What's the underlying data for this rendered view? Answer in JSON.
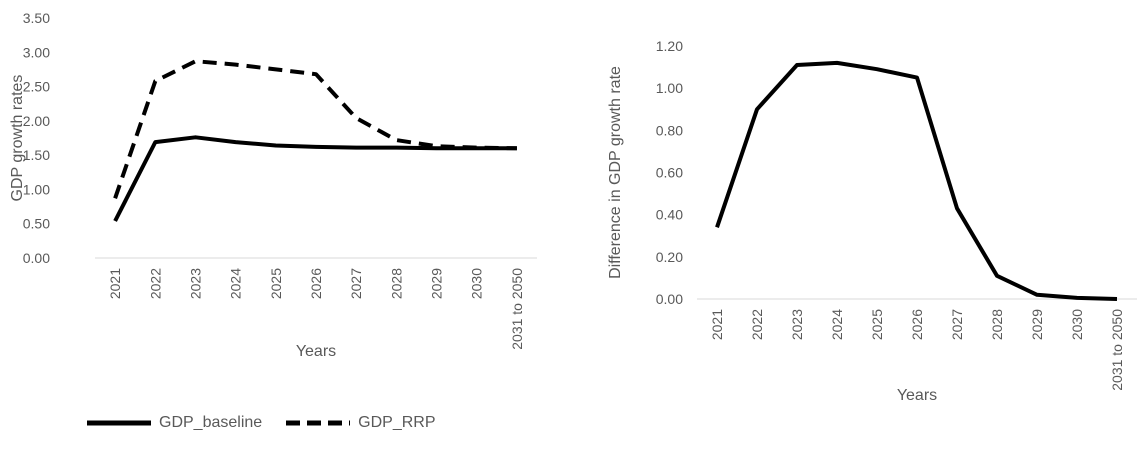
{
  "chart_data": [
    {
      "type": "line",
      "title": "",
      "xlabel": "Years",
      "ylabel": "GDP growth rates",
      "categories": [
        "2021",
        "2022",
        "2023",
        "2024",
        "2025",
        "2026",
        "2027",
        "2028",
        "2029",
        "2030",
        "2031 to 2050"
      ],
      "ylim": [
        0,
        3.5
      ],
      "yticks": [
        "0.00",
        "0.50",
        "1.00",
        "1.50",
        "2.00",
        "2.50",
        "3.00",
        "3.50"
      ],
      "grid": false,
      "legend_position": "bottom-left",
      "series": [
        {
          "name": "GDP_baseline",
          "style": "solid",
          "color": "#000000",
          "values": [
            0.54,
            1.69,
            1.76,
            1.69,
            1.64,
            1.62,
            1.61,
            1.61,
            1.6,
            1.6,
            1.6
          ]
        },
        {
          "name": "GDP_RRP",
          "style": "dashed",
          "color": "#000000",
          "values": [
            0.87,
            2.58,
            2.87,
            2.82,
            2.75,
            2.68,
            2.04,
            1.72,
            1.63,
            1.61,
            1.6
          ]
        }
      ]
    },
    {
      "type": "line",
      "title": "",
      "xlabel": "Years",
      "ylabel": "Difference in GDP growth rate",
      "categories": [
        "2021",
        "2022",
        "2023",
        "2024",
        "2025",
        "2026",
        "2027",
        "2028",
        "2029",
        "2030",
        "2031 to 2050"
      ],
      "ylim": [
        0,
        1.2
      ],
      "yticks": [
        "0.00",
        "0.20",
        "0.40",
        "0.60",
        "0.80",
        "1.00",
        "1.20"
      ],
      "grid": false,
      "series": [
        {
          "style": "solid",
          "color": "#000000",
          "values": [
            0.34,
            0.9,
            1.11,
            1.12,
            1.09,
            1.05,
            0.43,
            0.11,
            0.02,
            0.005,
            0.0
          ]
        }
      ]
    }
  ],
  "legend": {
    "items": [
      {
        "label": "GDP_baseline",
        "style": "solid"
      },
      {
        "label": "GDP_RRP",
        "style": "dashed"
      }
    ]
  }
}
